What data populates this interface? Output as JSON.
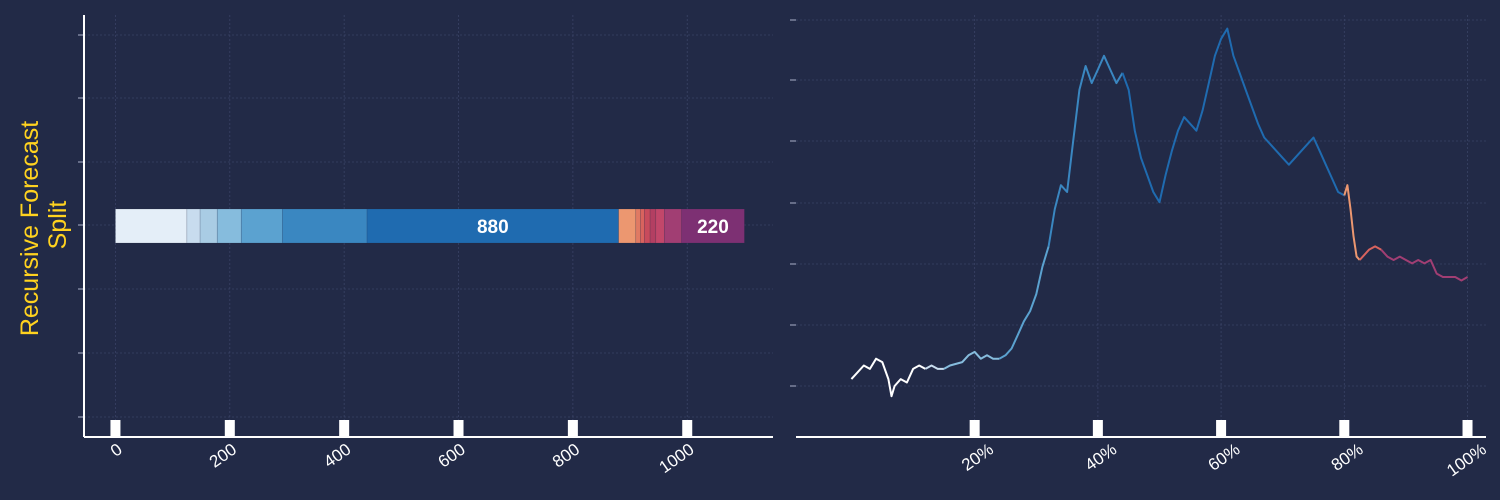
{
  "chart_data": [
    {
      "type": "bar",
      "orientation": "horizontal-stacked",
      "ylabel": "Recursive Forecast\nSplit",
      "xlim": [
        -55,
        1150
      ],
      "xticks": [
        "0",
        "200",
        "400",
        "600",
        "800",
        "1000"
      ],
      "xtick_values": [
        0,
        200,
        400,
        600,
        800,
        1000
      ],
      "segments": [
        {
          "start": 0,
          "end": 125,
          "color": "#e4eef8",
          "label": ""
        },
        {
          "start": 125,
          "end": 148,
          "color": "#c8dcee",
          "label": ""
        },
        {
          "start": 148,
          "end": 178,
          "color": "#a9cce4",
          "label": ""
        },
        {
          "start": 178,
          "end": 220,
          "color": "#86bcdd",
          "label": ""
        },
        {
          "start": 220,
          "end": 292,
          "color": "#5ba2d0",
          "label": ""
        },
        {
          "start": 292,
          "end": 440,
          "color": "#3a87c1",
          "label": ""
        },
        {
          "start": 440,
          "end": 880,
          "color": "#1f6bb0",
          "label": "880"
        },
        {
          "start": 880,
          "end": 910,
          "color": "#ec9770",
          "label": ""
        },
        {
          "start": 910,
          "end": 918,
          "color": "#e07a63",
          "label": ""
        },
        {
          "start": 918,
          "end": 925,
          "color": "#d8635e",
          "label": ""
        },
        {
          "start": 925,
          "end": 935,
          "color": "#c84b5c",
          "label": ""
        },
        {
          "start": 935,
          "end": 945,
          "color": "#b33f62",
          "label": ""
        },
        {
          "start": 945,
          "end": 960,
          "color": "#c2476a",
          "label": ""
        },
        {
          "start": 960,
          "end": 990,
          "color": "#a13e73",
          "label": ""
        },
        {
          "start": 990,
          "end": 1100,
          "color": "#7d3073",
          "label": "220"
        }
      ]
    },
    {
      "type": "line",
      "xlim": [
        -0.09,
        1.03
      ],
      "ylim": [
        -0.12,
        1.12
      ],
      "xticks": [
        "20%",
        "40%",
        "60%",
        "80%",
        "100%"
      ],
      "xtick_values": [
        0.2,
        0.4,
        0.6,
        0.8,
        1.0
      ],
      "series": [
        {
          "color": "#ffffff",
          "points": [
            [
              0.0,
              0.05
            ],
            [
              0.01,
              0.07
            ],
            [
              0.02,
              0.09
            ],
            [
              0.03,
              0.08
            ],
            [
              0.04,
              0.11
            ],
            [
              0.05,
              0.1
            ],
            [
              0.06,
              0.05
            ],
            [
              0.065,
              0.0
            ],
            [
              0.07,
              0.03
            ],
            [
              0.08,
              0.05
            ],
            [
              0.09,
              0.04
            ],
            [
              0.1,
              0.08
            ],
            [
              0.11,
              0.09
            ],
            [
              0.12,
              0.08
            ]
          ]
        },
        {
          "color": "#c8dcee",
          "points": [
            [
              0.12,
              0.08
            ],
            [
              0.13,
              0.09
            ],
            [
              0.14,
              0.08
            ],
            [
              0.15,
              0.08
            ]
          ]
        },
        {
          "color": "#86bcdd",
          "points": [
            [
              0.15,
              0.08
            ],
            [
              0.16,
              0.09
            ],
            [
              0.18,
              0.1
            ],
            [
              0.19,
              0.12
            ],
            [
              0.2,
              0.13
            ],
            [
              0.21,
              0.11
            ],
            [
              0.22,
              0.12
            ],
            [
              0.23,
              0.11
            ],
            [
              0.24,
              0.11
            ]
          ]
        },
        {
          "color": "#5ba2d0",
          "points": [
            [
              0.24,
              0.11
            ],
            [
              0.25,
              0.12
            ],
            [
              0.26,
              0.14
            ],
            [
              0.27,
              0.18
            ],
            [
              0.28,
              0.22
            ],
            [
              0.29,
              0.25
            ],
            [
              0.3,
              0.3
            ],
            [
              0.31,
              0.38
            ],
            [
              0.32,
              0.44
            ]
          ]
        },
        {
          "color": "#3a87c1",
          "points": [
            [
              0.32,
              0.44
            ],
            [
              0.33,
              0.55
            ],
            [
              0.34,
              0.62
            ],
            [
              0.35,
              0.6
            ],
            [
              0.36,
              0.75
            ],
            [
              0.37,
              0.9
            ],
            [
              0.38,
              0.97
            ],
            [
              0.39,
              0.92
            ],
            [
              0.4,
              0.96
            ],
            [
              0.41,
              1.0
            ],
            [
              0.42,
              0.96
            ],
            [
              0.43,
              0.92
            ],
            [
              0.44,
              0.95
            ]
          ]
        },
        {
          "color": "#1f6bb0",
          "points": [
            [
              0.44,
              0.95
            ],
            [
              0.45,
              0.9
            ],
            [
              0.46,
              0.78
            ],
            [
              0.47,
              0.7
            ],
            [
              0.48,
              0.65
            ],
            [
              0.49,
              0.6
            ],
            [
              0.5,
              0.57
            ],
            [
              0.51,
              0.65
            ],
            [
              0.52,
              0.72
            ],
            [
              0.53,
              0.78
            ],
            [
              0.54,
              0.82
            ],
            [
              0.55,
              0.8
            ],
            [
              0.56,
              0.78
            ],
            [
              0.57,
              0.84
            ],
            [
              0.58,
              0.92
            ],
            [
              0.59,
              1.0
            ],
            [
              0.6,
              1.05
            ],
            [
              0.61,
              1.08
            ],
            [
              0.62,
              1.0
            ],
            [
              0.63,
              0.95
            ],
            [
              0.64,
              0.9
            ],
            [
              0.65,
              0.85
            ],
            [
              0.66,
              0.8
            ],
            [
              0.67,
              0.76
            ],
            [
              0.68,
              0.74
            ],
            [
              0.69,
              0.72
            ],
            [
              0.7,
              0.7
            ],
            [
              0.71,
              0.68
            ],
            [
              0.72,
              0.7
            ],
            [
              0.73,
              0.72
            ],
            [
              0.74,
              0.74
            ],
            [
              0.75,
              0.76
            ],
            [
              0.76,
              0.72
            ],
            [
              0.77,
              0.68
            ],
            [
              0.78,
              0.64
            ],
            [
              0.79,
              0.6
            ],
            [
              0.8,
              0.59
            ]
          ]
        },
        {
          "color": "#ec9770",
          "points": [
            [
              0.8,
              0.59
            ],
            [
              0.805,
              0.62
            ],
            [
              0.81,
              0.55
            ],
            [
              0.815,
              0.47
            ],
            [
              0.82,
              0.41
            ],
            [
              0.825,
              0.4
            ]
          ]
        },
        {
          "color": "#d8635e",
          "points": [
            [
              0.825,
              0.4
            ],
            [
              0.83,
              0.41
            ],
            [
              0.84,
              0.43
            ],
            [
              0.85,
              0.44
            ],
            [
              0.86,
              0.43
            ]
          ]
        },
        {
          "color": "#a13e73",
          "points": [
            [
              0.86,
              0.43
            ],
            [
              0.87,
              0.41
            ],
            [
              0.88,
              0.4
            ],
            [
              0.89,
              0.41
            ],
            [
              0.9,
              0.4
            ],
            [
              0.91,
              0.39
            ],
            [
              0.92,
              0.4
            ],
            [
              0.93,
              0.39
            ],
            [
              0.94,
              0.4
            ],
            [
              0.95,
              0.36
            ],
            [
              0.96,
              0.35
            ],
            [
              0.97,
              0.35
            ],
            [
              0.98,
              0.35
            ],
            [
              0.99,
              0.34
            ],
            [
              1.0,
              0.35
            ]
          ]
        }
      ]
    }
  ]
}
